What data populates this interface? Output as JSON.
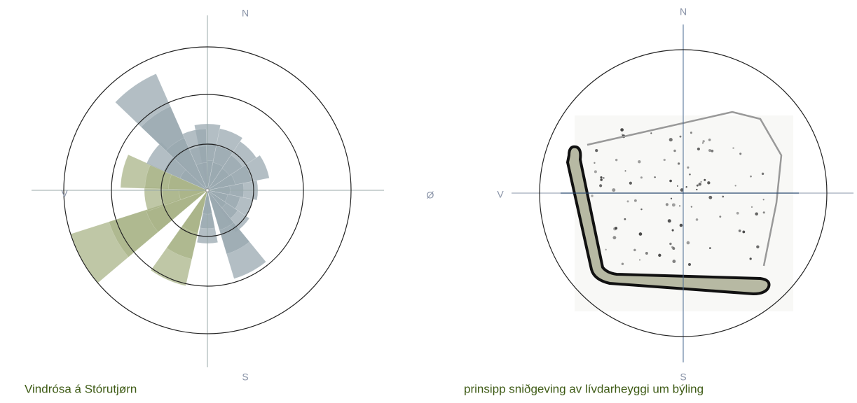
{
  "left": {
    "labels": {
      "north": "N",
      "west": "V",
      "east": "Ø",
      "south": "S"
    },
    "caption": "Vindrósa á Stórutjørn"
  },
  "right": {
    "labels": {
      "north": "N",
      "west": "V",
      "south": "S"
    },
    "caption": "prinsipp sniðgeving av lívdarheyggi um býling"
  }
}
